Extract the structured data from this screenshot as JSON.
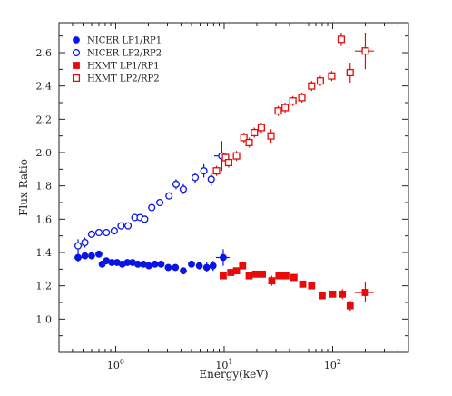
{
  "chart_data": {
    "type": "scatter",
    "xlabel": "Energy(keV)",
    "ylabel": "Flux Ratio",
    "xscale": "log",
    "xlim": [
      0.3,
      500
    ],
    "ylim": [
      0.8,
      2.78
    ],
    "yticks": [
      "1.0",
      "1.2",
      "1.4",
      "1.6",
      "1.8",
      "2.0",
      "2.2",
      "2.4",
      "2.6"
    ],
    "xticks": [
      {
        "base": "10",
        "exp": "0",
        "value": 1
      },
      {
        "base": "10",
        "exp": "1",
        "value": 10
      },
      {
        "base": "10",
        "exp": "2",
        "value": 100
      }
    ],
    "legend_position": "top-left",
    "grid": false,
    "series": [
      {
        "name": "NICER  LP1/RP1",
        "marker": "circle-filled",
        "color": "#0a14e6",
        "points": [
          {
            "x": 0.45,
            "y": 1.37,
            "xerr": 0.04,
            "yerr": 0.03
          },
          {
            "x": 0.52,
            "y": 1.38,
            "xerr": 0.03,
            "yerr": 0.02
          },
          {
            "x": 0.6,
            "y": 1.38,
            "xerr": 0.03,
            "yerr": 0.02
          },
          {
            "x": 0.7,
            "y": 1.39,
            "xerr": 0.03,
            "yerr": 0.02
          },
          {
            "x": 0.75,
            "y": 1.33,
            "xerr": 0.03,
            "yerr": 0.02
          },
          {
            "x": 0.82,
            "y": 1.35,
            "xerr": 0.04,
            "yerr": 0.02
          },
          {
            "x": 0.92,
            "y": 1.34,
            "xerr": 0.04,
            "yerr": 0.02
          },
          {
            "x": 1.03,
            "y": 1.34,
            "xerr": 0.05,
            "yerr": 0.02
          },
          {
            "x": 1.15,
            "y": 1.33,
            "xerr": 0.05,
            "yerr": 0.02
          },
          {
            "x": 1.28,
            "y": 1.34,
            "xerr": 0.06,
            "yerr": 0.02
          },
          {
            "x": 1.43,
            "y": 1.34,
            "xerr": 0.07,
            "yerr": 0.02
          },
          {
            "x": 1.6,
            "y": 1.33,
            "xerr": 0.08,
            "yerr": 0.02
          },
          {
            "x": 1.8,
            "y": 1.33,
            "xerr": 0.09,
            "yerr": 0.02
          },
          {
            "x": 2.02,
            "y": 1.32,
            "xerr": 0.1,
            "yerr": 0.02
          },
          {
            "x": 2.3,
            "y": 1.33,
            "xerr": 0.12,
            "yerr": 0.02
          },
          {
            "x": 2.62,
            "y": 1.33,
            "xerr": 0.13,
            "yerr": 0.02
          },
          {
            "x": 3.05,
            "y": 1.31,
            "xerr": 0.15,
            "yerr": 0.02
          },
          {
            "x": 3.55,
            "y": 1.31,
            "xerr": 0.18,
            "yerr": 0.02
          },
          {
            "x": 4.2,
            "y": 1.29,
            "xerr": 0.2,
            "yerr": 0.02
          },
          {
            "x": 5.0,
            "y": 1.33,
            "xerr": 0.25,
            "yerr": 0.02
          },
          {
            "x": 5.9,
            "y": 1.32,
            "xerr": 0.3,
            "yerr": 0.02
          },
          {
            "x": 6.9,
            "y": 1.31,
            "xerr": 0.35,
            "yerr": 0.03
          },
          {
            "x": 7.9,
            "y": 1.32,
            "xerr": 0.4,
            "yerr": 0.03
          },
          {
            "x": 9.8,
            "y": 1.37,
            "xerr": 1.4,
            "yerr": 0.05
          }
        ]
      },
      {
        "name": "NICER  LP2/RP2",
        "marker": "circle-open",
        "color": "#0a14e6",
        "points": [
          {
            "x": 0.45,
            "y": 1.44,
            "xerr": 0.04,
            "yerr": 0.04
          },
          {
            "x": 0.52,
            "y": 1.46,
            "xerr": 0.03,
            "yerr": 0.03
          },
          {
            "x": 0.6,
            "y": 1.51,
            "xerr": 0.03,
            "yerr": 0.02
          },
          {
            "x": 0.7,
            "y": 1.52,
            "xerr": 0.03,
            "yerr": 0.02
          },
          {
            "x": 0.82,
            "y": 1.52,
            "xerr": 0.04,
            "yerr": 0.02
          },
          {
            "x": 0.97,
            "y": 1.53,
            "xerr": 0.05,
            "yerr": 0.02
          },
          {
            "x": 1.12,
            "y": 1.56,
            "xerr": 0.05,
            "yerr": 0.02
          },
          {
            "x": 1.3,
            "y": 1.56,
            "xerr": 0.06,
            "yerr": 0.02
          },
          {
            "x": 1.5,
            "y": 1.61,
            "xerr": 0.07,
            "yerr": 0.02
          },
          {
            "x": 1.68,
            "y": 1.61,
            "xerr": 0.08,
            "yerr": 0.02
          },
          {
            "x": 1.85,
            "y": 1.6,
            "xerr": 0.09,
            "yerr": 0.02
          },
          {
            "x": 2.15,
            "y": 1.67,
            "xerr": 0.1,
            "yerr": 0.02
          },
          {
            "x": 2.55,
            "y": 1.7,
            "xerr": 0.12,
            "yerr": 0.02
          },
          {
            "x": 3.1,
            "y": 1.74,
            "xerr": 0.15,
            "yerr": 0.02
          },
          {
            "x": 3.6,
            "y": 1.81,
            "xerr": 0.18,
            "yerr": 0.03
          },
          {
            "x": 4.2,
            "y": 1.78,
            "xerr": 0.2,
            "yerr": 0.03
          },
          {
            "x": 5.4,
            "y": 1.85,
            "xerr": 0.25,
            "yerr": 0.03
          },
          {
            "x": 6.5,
            "y": 1.89,
            "xerr": 0.3,
            "yerr": 0.04
          },
          {
            "x": 7.6,
            "y": 1.84,
            "xerr": 0.4,
            "yerr": 0.04
          },
          {
            "x": 9.5,
            "y": 1.98,
            "xerr": 1.4,
            "yerr": 0.09
          }
        ]
      },
      {
        "name": "HXMT  LP1/RP1",
        "marker": "square-filled",
        "color": "#e60a0a",
        "points": [
          {
            "x": 9.8,
            "y": 1.26,
            "xerr": 0.4,
            "yerr": 0.02
          },
          {
            "x": 11.5,
            "y": 1.28,
            "xerr": 0.5,
            "yerr": 0.02
          },
          {
            "x": 13.0,
            "y": 1.29,
            "xerr": 0.6,
            "yerr": 0.02
          },
          {
            "x": 14.8,
            "y": 1.32,
            "xerr": 0.7,
            "yerr": 0.02
          },
          {
            "x": 17.0,
            "y": 1.26,
            "xerr": 0.8,
            "yerr": 0.02
          },
          {
            "x": 19.5,
            "y": 1.27,
            "xerr": 0.9,
            "yerr": 0.02
          },
          {
            "x": 22.5,
            "y": 1.27,
            "xerr": 1.0,
            "yerr": 0.02
          },
          {
            "x": 27.5,
            "y": 1.23,
            "xerr": 1.3,
            "yerr": 0.03
          },
          {
            "x": 32.0,
            "y": 1.26,
            "xerr": 1.5,
            "yerr": 0.02
          },
          {
            "x": 37.0,
            "y": 1.26,
            "xerr": 1.8,
            "yerr": 0.02
          },
          {
            "x": 44.0,
            "y": 1.25,
            "xerr": 2.2,
            "yerr": 0.02
          },
          {
            "x": 53.0,
            "y": 1.21,
            "xerr": 2.6,
            "yerr": 0.02
          },
          {
            "x": 64.0,
            "y": 1.2,
            "xerr": 3.2,
            "yerr": 0.02
          },
          {
            "x": 80.0,
            "y": 1.14,
            "xerr": 4.0,
            "yerr": 0.02
          },
          {
            "x": 100.0,
            "y": 1.15,
            "xerr": 5.0,
            "yerr": 0.02
          },
          {
            "x": 123.0,
            "y": 1.15,
            "xerr": 7.0,
            "yerr": 0.03
          },
          {
            "x": 145.0,
            "y": 1.08,
            "xerr": 8.0,
            "yerr": 0.03
          },
          {
            "x": 200.0,
            "y": 1.16,
            "xerr": 40.0,
            "yerr": 0.06
          }
        ]
      },
      {
        "name": "HXMT  LP2/RP2",
        "marker": "square-open",
        "color": "#e60a0a",
        "points": [
          {
            "x": 8.5,
            "y": 1.89,
            "xerr": 0.4,
            "yerr": 0.03
          },
          {
            "x": 10.3,
            "y": 1.97,
            "xerr": 0.5,
            "yerr": 0.03
          },
          {
            "x": 11.0,
            "y": 1.94,
            "xerr": 0.5,
            "yerr": 0.03
          },
          {
            "x": 13.0,
            "y": 1.98,
            "xerr": 0.6,
            "yerr": 0.03
          },
          {
            "x": 15.2,
            "y": 2.09,
            "xerr": 0.7,
            "yerr": 0.03
          },
          {
            "x": 17.0,
            "y": 2.06,
            "xerr": 0.8,
            "yerr": 0.03
          },
          {
            "x": 19.0,
            "y": 2.12,
            "xerr": 0.9,
            "yerr": 0.03
          },
          {
            "x": 22.0,
            "y": 2.15,
            "xerr": 1.0,
            "yerr": 0.03
          },
          {
            "x": 27.0,
            "y": 2.1,
            "xerr": 1.3,
            "yerr": 0.04
          },
          {
            "x": 31.5,
            "y": 2.25,
            "xerr": 1.5,
            "yerr": 0.03
          },
          {
            "x": 36.5,
            "y": 2.27,
            "xerr": 1.8,
            "yerr": 0.03
          },
          {
            "x": 43.0,
            "y": 2.31,
            "xerr": 2.2,
            "yerr": 0.03
          },
          {
            "x": 52.0,
            "y": 2.33,
            "xerr": 2.6,
            "yerr": 0.03
          },
          {
            "x": 64.0,
            "y": 2.4,
            "xerr": 3.2,
            "yerr": 0.03
          },
          {
            "x": 77.0,
            "y": 2.43,
            "xerr": 4.0,
            "yerr": 0.03
          },
          {
            "x": 98.0,
            "y": 2.46,
            "xerr": 5.0,
            "yerr": 0.03
          },
          {
            "x": 120.0,
            "y": 2.68,
            "xerr": 6.0,
            "yerr": 0.04
          },
          {
            "x": 145.0,
            "y": 2.48,
            "xerr": 8.0,
            "yerr": 0.06
          },
          {
            "x": 200.0,
            "y": 2.61,
            "xerr": 40.0,
            "yerr": 0.11
          }
        ]
      }
    ]
  }
}
